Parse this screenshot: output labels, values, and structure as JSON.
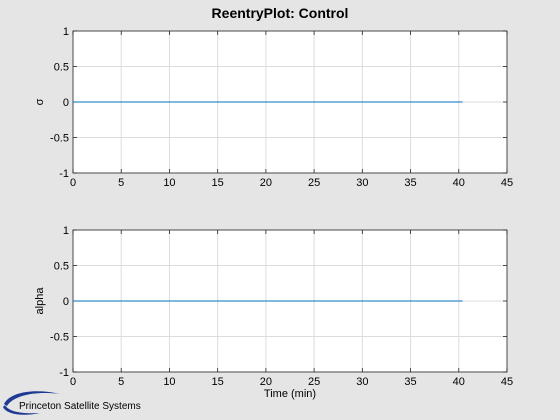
{
  "figure": {
    "title": "ReentryPlot: Control",
    "brand": "Princeton Satellite Systems",
    "background": "#e5e5e5"
  },
  "chart_data": [
    {
      "type": "line",
      "title": "ReentryPlot: Control",
      "xlabel": "",
      "ylabel": "σ",
      "xlim": [
        0,
        45
      ],
      "ylim": [
        -1,
        1
      ],
      "xticks": [
        0,
        5,
        10,
        15,
        20,
        25,
        30,
        35,
        40,
        45
      ],
      "yticks": [
        -1,
        -0.5,
        0,
        0.5,
        1
      ],
      "xtick_labels": [
        "0",
        "5",
        "10",
        "15",
        "20",
        "25",
        "30",
        "35",
        "40",
        "45"
      ],
      "ytick_labels": [
        "-1",
        "-0.5",
        "0",
        "0.5",
        "1"
      ],
      "grid": true,
      "series": [
        {
          "x": [
            0,
            40.4
          ],
          "y": [
            0,
            0
          ],
          "color": "#0072bd"
        }
      ]
    },
    {
      "type": "line",
      "title": "",
      "xlabel": "Time (min)",
      "ylabel": "alpha",
      "xlim": [
        0,
        45
      ],
      "ylim": [
        -1,
        1
      ],
      "xticks": [
        0,
        5,
        10,
        15,
        20,
        25,
        30,
        35,
        40,
        45
      ],
      "yticks": [
        -1,
        -0.5,
        0,
        0.5,
        1
      ],
      "xtick_labels": [
        "0",
        "5",
        "10",
        "15",
        "20",
        "25",
        "30",
        "35",
        "40",
        "45"
      ],
      "ytick_labels": [
        "-1",
        "-0.5",
        "0",
        "0.5",
        "1"
      ],
      "grid": true,
      "series": [
        {
          "x": [
            0,
            40.4
          ],
          "y": [
            0,
            0
          ],
          "color": "#0072bd"
        }
      ]
    }
  ]
}
